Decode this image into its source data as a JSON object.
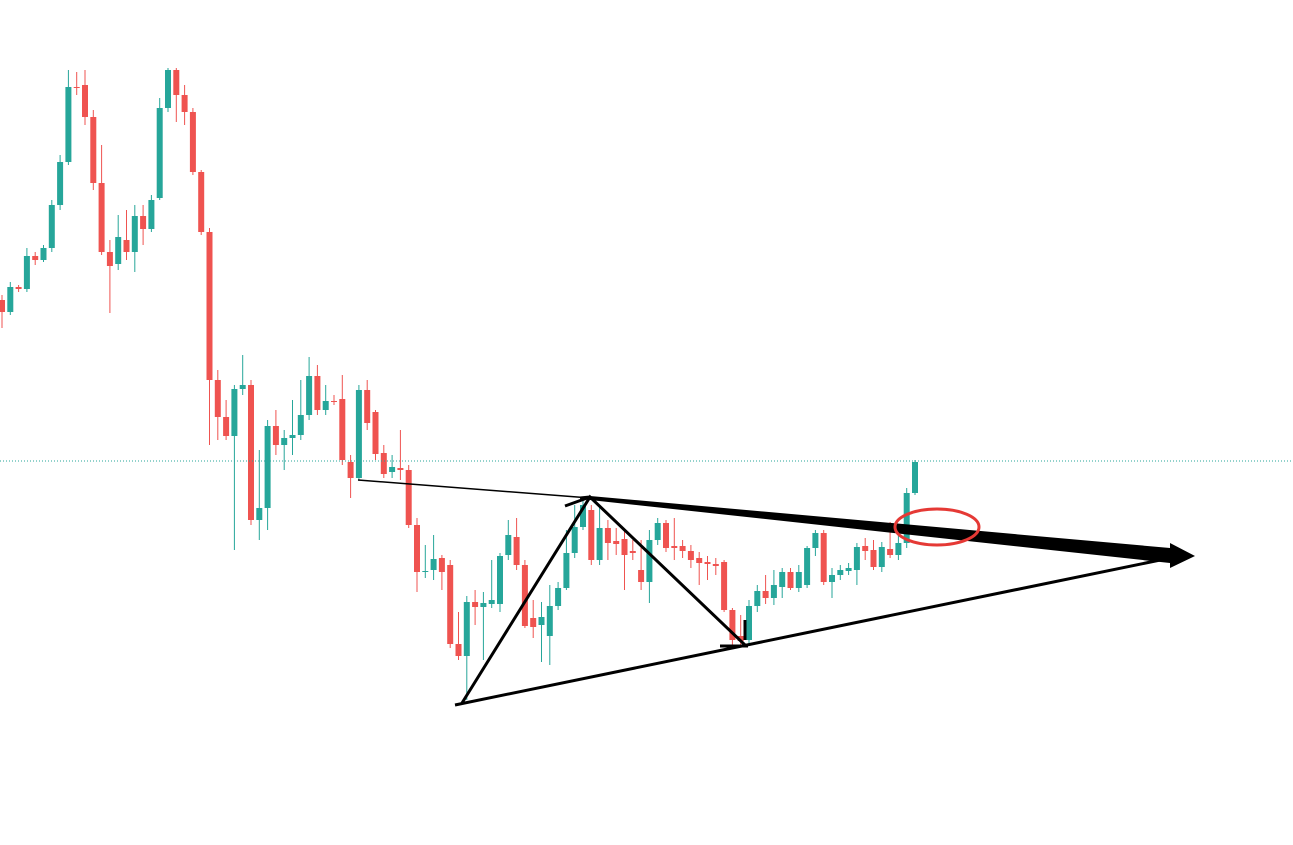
{
  "chart_data": {
    "type": "candlestick",
    "open": [
      545,
      533,
      558,
      556,
      589,
      585,
      597,
      640,
      683,
      758,
      760,
      728,
      662,
      593,
      581,
      605,
      593,
      629,
      616,
      647,
      737,
      775,
      750,
      733,
      673,
      613,
      465,
      428,
      409,
      456,
      460,
      325,
      337,
      419,
      400,
      407,
      410,
      430,
      469,
      435,
      444,
      446,
      383,
      367,
      455,
      433,
      392,
      373,
      377,
      375,
      320,
      273,
      275,
      287,
      280,
      201,
      189,
      243,
      238,
      241,
      241,
      290,
      308,
      280,
      227,
      220,
      209,
      239,
      257,
      292,
      318,
      335,
      285,
      317,
      304,
      306,
      294,
      275,
      263,
      305,
      322,
      299,
      299,
      294,
      287,
      283,
      281,
      283,
      235,
      209,
      205,
      239,
      254,
      247,
      258,
      273,
      257,
      260,
      297,
      312,
      263,
      270,
      274,
      275,
      299,
      295,
      278,
      296,
      290,
      302,
      352
    ],
    "high": [
      550,
      563,
      560,
      597,
      593,
      600,
      645,
      690,
      775,
      773,
      775,
      735,
      700,
      605,
      630,
      635,
      640,
      640,
      650,
      747,
      777,
      777,
      760,
      737,
      675,
      617,
      475,
      445,
      460,
      490,
      465,
      395,
      425,
      435,
      415,
      445,
      465,
      488,
      480,
      460,
      450,
      470,
      390,
      460,
      465,
      435,
      400,
      390,
      415,
      380,
      327,
      300,
      310,
      290,
      285,
      233,
      249,
      255,
      253,
      285,
      292,
      325,
      327,
      285,
      245,
      243,
      260,
      263,
      315,
      340,
      348,
      340,
      339,
      325,
      317,
      315,
      305,
      305,
      315,
      327,
      325,
      327,
      305,
      300,
      293,
      289,
      287,
      285,
      237,
      230,
      245,
      260,
      270,
      275,
      277,
      277,
      280,
      299,
      315,
      315,
      277,
      280,
      282,
      302,
      307,
      305,
      303,
      323,
      315,
      357,
      385
    ],
    "low": [
      517,
      530,
      553,
      553,
      580,
      583,
      593,
      635,
      680,
      750,
      720,
      655,
      590,
      532,
      575,
      585,
      573,
      600,
      613,
      645,
      733,
      723,
      720,
      670,
      610,
      400,
      405,
      405,
      295,
      450,
      320,
      305,
      315,
      390,
      375,
      390,
      405,
      425,
      430,
      430,
      440,
      380,
      347,
      365,
      415,
      385,
      367,
      367,
      365,
      317,
      253,
      267,
      265,
      255,
      197,
      185,
      145,
      220,
      185,
      237,
      233,
      285,
      275,
      217,
      207,
      183,
      180,
      235,
      255,
      287,
      315,
      280,
      280,
      285,
      290,
      255,
      285,
      255,
      242,
      300,
      293,
      285,
      287,
      277,
      260,
      265,
      270,
      233,
      197,
      200,
      200,
      233,
      241,
      240,
      247,
      255,
      253,
      257,
      289,
      260,
      247,
      265,
      270,
      260,
      285,
      275,
      273,
      287,
      285,
      297,
      350
    ],
    "close": [
      533,
      558,
      556,
      589,
      585,
      597,
      640,
      683,
      758,
      757,
      728,
      662,
      593,
      579,
      608,
      593,
      629,
      616,
      645,
      737,
      775,
      750,
      733,
      673,
      613,
      465,
      428,
      409,
      456,
      460,
      325,
      337,
      419,
      400,
      407,
      410,
      430,
      469,
      435,
      444,
      443,
      385,
      367,
      455,
      422,
      391,
      371,
      378,
      375,
      320,
      273,
      274,
      286,
      273,
      201,
      189,
      243,
      238,
      242,
      245,
      289,
      310,
      280,
      219,
      218,
      228,
      239,
      257,
      292,
      318,
      340,
      285,
      317,
      302,
      301,
      290,
      292,
      263,
      305,
      322,
      297,
      297,
      294,
      285,
      282,
      281,
      279,
      235,
      205,
      204,
      239,
      254,
      247,
      260,
      273,
      257,
      273,
      297,
      312,
      263,
      270,
      275,
      277,
      298,
      294,
      278,
      298,
      290,
      302,
      352,
      383
    ],
    "up_color": "#26a69a",
    "down_color": "#ef5350",
    "price_line": 384,
    "price_line_color": "#26a69a",
    "ylim": [
      0,
      845
    ]
  }
}
